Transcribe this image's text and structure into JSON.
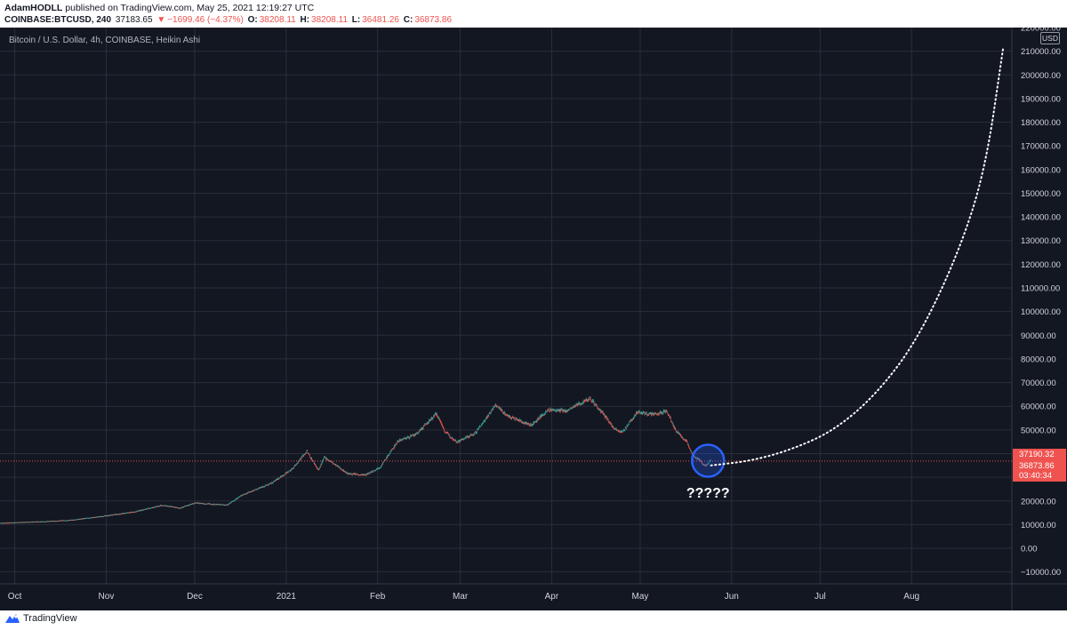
{
  "header": {
    "author": "AdamHODLL",
    "published_text": "published on TradingView.com, May 25, 2021 12:19:27 UTC",
    "symbol": "COINBASE:BTCUSD, 240",
    "last": "37183.65",
    "change_arrow": "▼",
    "change": "−1699.46 (−4.37%)",
    "o_label": "O:",
    "o_value": "38208.11",
    "h_label": "H:",
    "h_value": "38208.11",
    "l_label": "L:",
    "l_value": "36481.26",
    "c_label": "C:",
    "c_value": "36873.86"
  },
  "footer": {
    "logo_text": "TradingView",
    "logo_icon": "tradingview-logo-icon"
  },
  "colors": {
    "background": "#131722",
    "up": "#26a69a",
    "down": "#ef5350",
    "grid": "#2a2e39",
    "axis_text": "#d1d4dc",
    "projection": "#ffffff",
    "circle": "#2962ff",
    "price_label": "#ef5350"
  },
  "chart_data": {
    "type": "candlestick",
    "title": "Bitcoin / U.S. Dollar, 4h, COINBASE, Heikin Ashi",
    "currency": "USD",
    "x_axis": {
      "type": "date",
      "range": [
        "2020-09-26",
        "2021-09-04"
      ]
    },
    "x_ticks": [
      {
        "date": "2020-10-01",
        "label": "Oct"
      },
      {
        "date": "2020-11-01",
        "label": "Nov"
      },
      {
        "date": "2020-12-01",
        "label": "Dec"
      },
      {
        "date": "2021-01-01",
        "label": "2021"
      },
      {
        "date": "2021-02-01",
        "label": "Feb"
      },
      {
        "date": "2021-03-01",
        "label": "Mar"
      },
      {
        "date": "2021-04-01",
        "label": "Apr"
      },
      {
        "date": "2021-05-01",
        "label": "May"
      },
      {
        "date": "2021-06-01",
        "label": "Jun"
      },
      {
        "date": "2021-07-01",
        "label": "Jul"
      },
      {
        "date": "2021-08-01",
        "label": "Aug"
      }
    ],
    "y_axis": {
      "range": [
        -15000,
        220000
      ]
    },
    "y_ticks": [
      "220000.00",
      "210000.00",
      "200000.00",
      "190000.00",
      "180000.00",
      "170000.00",
      "160000.00",
      "150000.00",
      "140000.00",
      "130000.00",
      "120000.00",
      "110000.00",
      "100000.00",
      "90000.00",
      "80000.00",
      "70000.00",
      "60000.00",
      "50000.00",
      "40000.00",
      "30000.00",
      "20000.00",
      "10000.00",
      "0.00",
      "−10000.00"
    ],
    "y_tick_values": [
      220000,
      210000,
      200000,
      190000,
      180000,
      170000,
      160000,
      150000,
      140000,
      130000,
      120000,
      110000,
      100000,
      90000,
      80000,
      70000,
      60000,
      50000,
      40000,
      30000,
      20000,
      10000,
      0,
      -10000
    ],
    "price_path": [
      {
        "date": "2020-09-26",
        "value": 10700
      },
      {
        "date": "2020-10-10",
        "value": 11300
      },
      {
        "date": "2020-10-20",
        "value": 11900
      },
      {
        "date": "2020-10-31",
        "value": 13600
      },
      {
        "date": "2020-11-10",
        "value": 15300
      },
      {
        "date": "2020-11-20",
        "value": 18200
      },
      {
        "date": "2020-11-26",
        "value": 17000
      },
      {
        "date": "2020-12-01",
        "value": 19200
      },
      {
        "date": "2020-12-12",
        "value": 18300
      },
      {
        "date": "2020-12-17",
        "value": 22500
      },
      {
        "date": "2020-12-27",
        "value": 27500
      },
      {
        "date": "2021-01-03",
        "value": 33500
      },
      {
        "date": "2021-01-08",
        "value": 41000
      },
      {
        "date": "2021-01-12",
        "value": 33000
      },
      {
        "date": "2021-01-14",
        "value": 38500
      },
      {
        "date": "2021-01-22",
        "value": 31500
      },
      {
        "date": "2021-01-28",
        "value": 31000
      },
      {
        "date": "2021-02-02",
        "value": 34500
      },
      {
        "date": "2021-02-08",
        "value": 45500
      },
      {
        "date": "2021-02-14",
        "value": 48000
      },
      {
        "date": "2021-02-21",
        "value": 57000
      },
      {
        "date": "2021-02-24",
        "value": 49000
      },
      {
        "date": "2021-02-28",
        "value": 45000
      },
      {
        "date": "2021-03-06",
        "value": 48500
      },
      {
        "date": "2021-03-13",
        "value": 60500
      },
      {
        "date": "2021-03-17",
        "value": 56000
      },
      {
        "date": "2021-03-25",
        "value": 52000
      },
      {
        "date": "2021-03-31",
        "value": 58500
      },
      {
        "date": "2021-04-06",
        "value": 58000
      },
      {
        "date": "2021-04-14",
        "value": 63500
      },
      {
        "date": "2021-04-18",
        "value": 57500
      },
      {
        "date": "2021-04-22",
        "value": 51000
      },
      {
        "date": "2021-04-25",
        "value": 49000
      },
      {
        "date": "2021-04-30",
        "value": 57500
      },
      {
        "date": "2021-05-06",
        "value": 56500
      },
      {
        "date": "2021-05-10",
        "value": 58000
      },
      {
        "date": "2021-05-13",
        "value": 50000
      },
      {
        "date": "2021-05-17",
        "value": 44500
      },
      {
        "date": "2021-05-19",
        "value": 39000
      },
      {
        "date": "2021-05-21",
        "value": 37500
      },
      {
        "date": "2021-05-23",
        "value": 34500
      },
      {
        "date": "2021-05-25",
        "value": 37183.65
      }
    ],
    "last_candle": {
      "open": 38208.11,
      "high": 38208.11,
      "low": 36481.26,
      "close": 36873.86
    },
    "price_lines": [
      {
        "label": "37190.32",
        "value": 37190.32
      },
      {
        "label": "36873.86",
        "value": 36873.86,
        "countdown": "03:40:34"
      }
    ],
    "projection": {
      "style": "dotted",
      "points": [
        {
          "date": "2021-05-25",
          "value": 35000
        },
        {
          "date": "2021-06-08",
          "value": 37000
        },
        {
          "date": "2021-06-22",
          "value": 42000
        },
        {
          "date": "2021-07-06",
          "value": 50000
        },
        {
          "date": "2021-07-20",
          "value": 65000
        },
        {
          "date": "2021-08-03",
          "value": 88000
        },
        {
          "date": "2021-08-17",
          "value": 125000
        },
        {
          "date": "2021-08-26",
          "value": 160000
        },
        {
          "date": "2021-09-01",
          "value": 211000
        }
      ]
    },
    "annotations": [
      {
        "type": "circle",
        "date": "2021-05-24",
        "value": 37000
      },
      {
        "type": "text",
        "text": "?????",
        "date": "2021-05-24",
        "value": 21500
      }
    ]
  }
}
